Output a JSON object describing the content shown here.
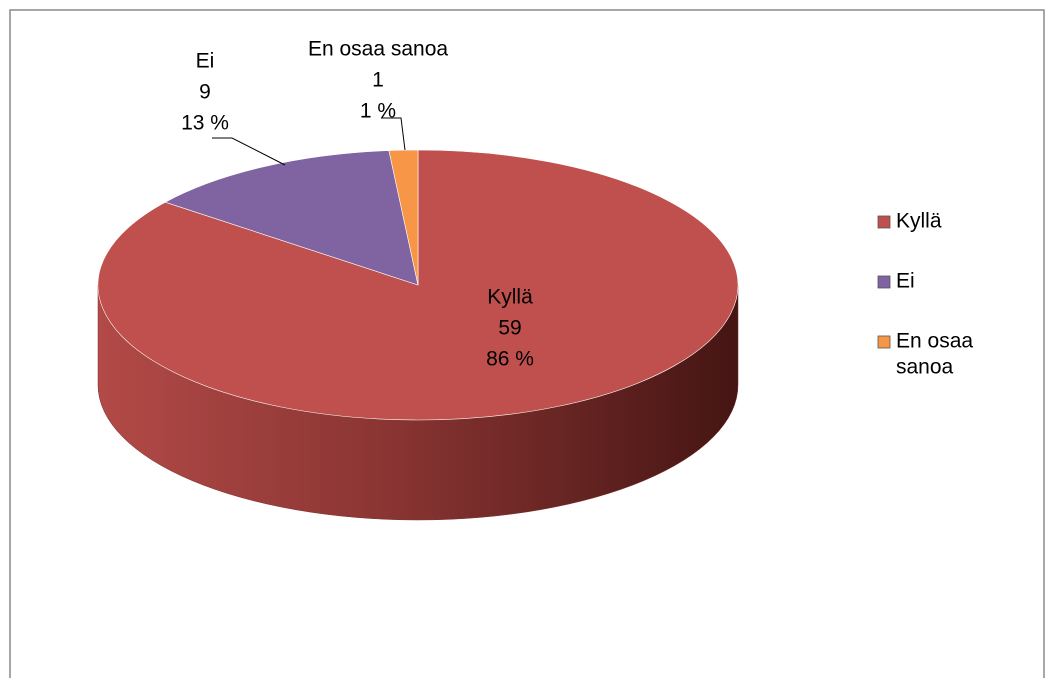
{
  "chart_data": {
    "type": "pie3d",
    "categories": [
      "Kyllä",
      "Ei",
      "En osaa sanoa"
    ],
    "values": [
      59,
      9,
      1
    ],
    "percent_labels": [
      "86 %",
      "13 %",
      "1 %"
    ],
    "colors": [
      "#c0504d",
      "#8064a2",
      "#f79646"
    ],
    "legend": "right",
    "legend_labels": [
      [
        "Kyllä"
      ],
      [
        "Ei"
      ],
      [
        "En osaa",
        "sanoa"
      ]
    ]
  }
}
